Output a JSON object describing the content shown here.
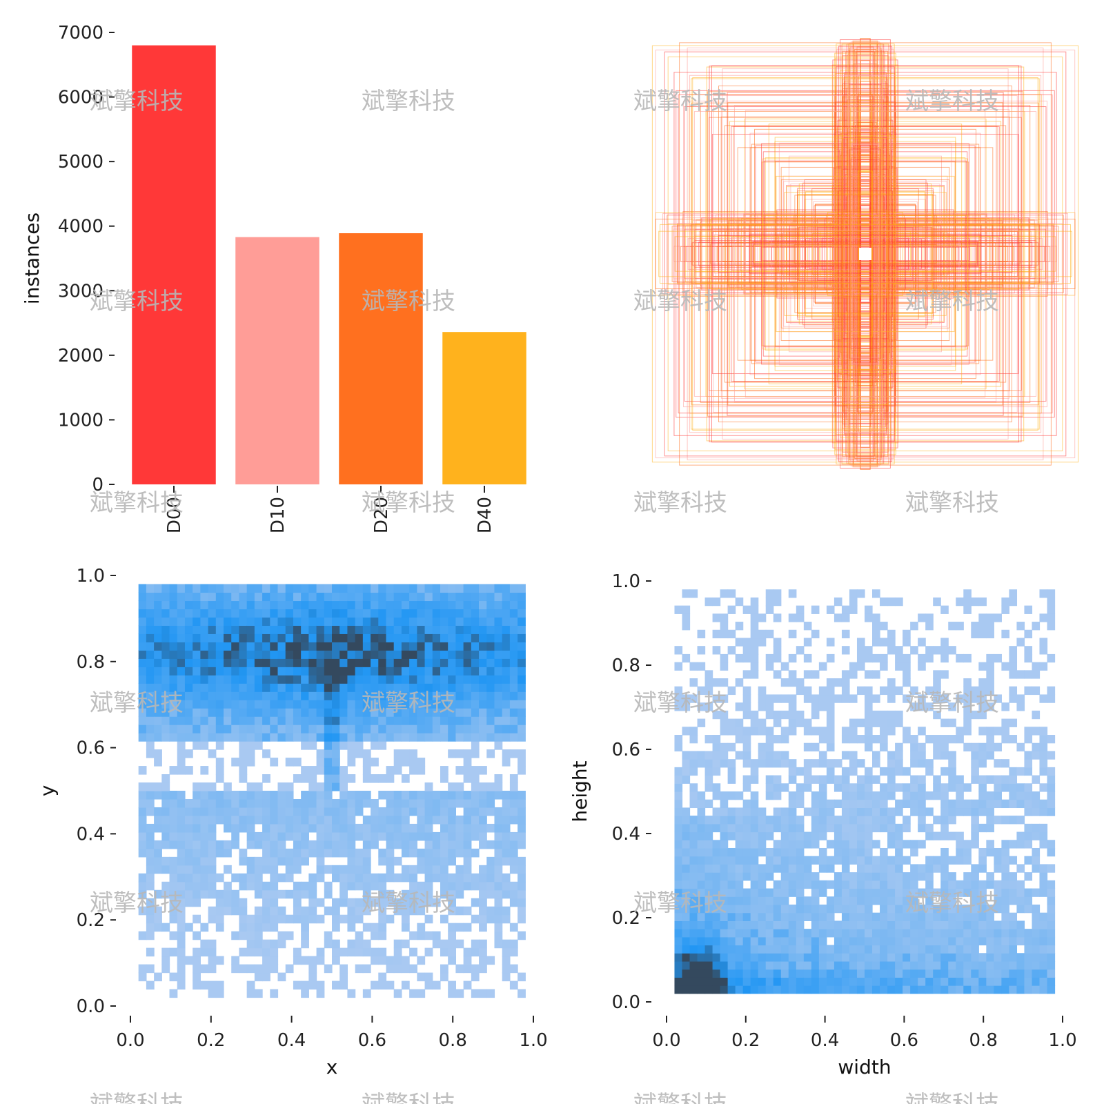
{
  "watermark_text": "斌擎科技",
  "chart_data": [
    {
      "type": "bar",
      "categories": [
        "D00",
        "D10",
        "D20",
        "D40"
      ],
      "values": [
        6800,
        3830,
        3890,
        2360
      ],
      "colors": [
        "#ff3838",
        "#ff9d97",
        "#ff701f",
        "#ffb21d"
      ],
      "xlabel": "",
      "ylabel": "instances",
      "ylim": [
        0,
        7000
      ],
      "yticks": [
        "0",
        "1000",
        "2000",
        "3000",
        "4000",
        "5000",
        "6000",
        "7000"
      ],
      "grid": false
    },
    {
      "type": "rectangles",
      "description_kind": "label box outlines centered at (0.5, 0.5)",
      "box_color_pattern": [
        "#ff3838",
        "#ff9d97",
        "#ff701f",
        "#ffb21d"
      ],
      "axes_visible": false
    },
    {
      "type": "heatmap",
      "xlabel": "x",
      "ylabel": "y",
      "xlim": [
        0,
        1
      ],
      "ylim": [
        0,
        1
      ],
      "xticks": [
        "0.0",
        "0.2",
        "0.4",
        "0.6",
        "0.8",
        "1.0"
      ],
      "yticks": [
        "0.0",
        "0.2",
        "0.4",
        "0.6",
        "0.8",
        "1.0"
      ],
      "color_low": "#a9c9f2",
      "color_mid": "#2196f3",
      "color_high": "#34495e",
      "density_peak": [
        0.5,
        0.8
      ]
    },
    {
      "type": "heatmap",
      "xlabel": "width",
      "ylabel": "height",
      "xlim": [
        0,
        1
      ],
      "ylim": [
        0,
        1
      ],
      "xticks": [
        "0.0",
        "0.2",
        "0.4",
        "0.6",
        "0.8",
        "1.0"
      ],
      "yticks": [
        "0.0",
        "0.2",
        "0.4",
        "0.6",
        "0.8",
        "1.0"
      ],
      "color_low": "#a9c9f2",
      "color_mid": "#2196f3",
      "color_high": "#34495e",
      "density_peak": [
        0.08,
        0.05
      ]
    }
  ]
}
